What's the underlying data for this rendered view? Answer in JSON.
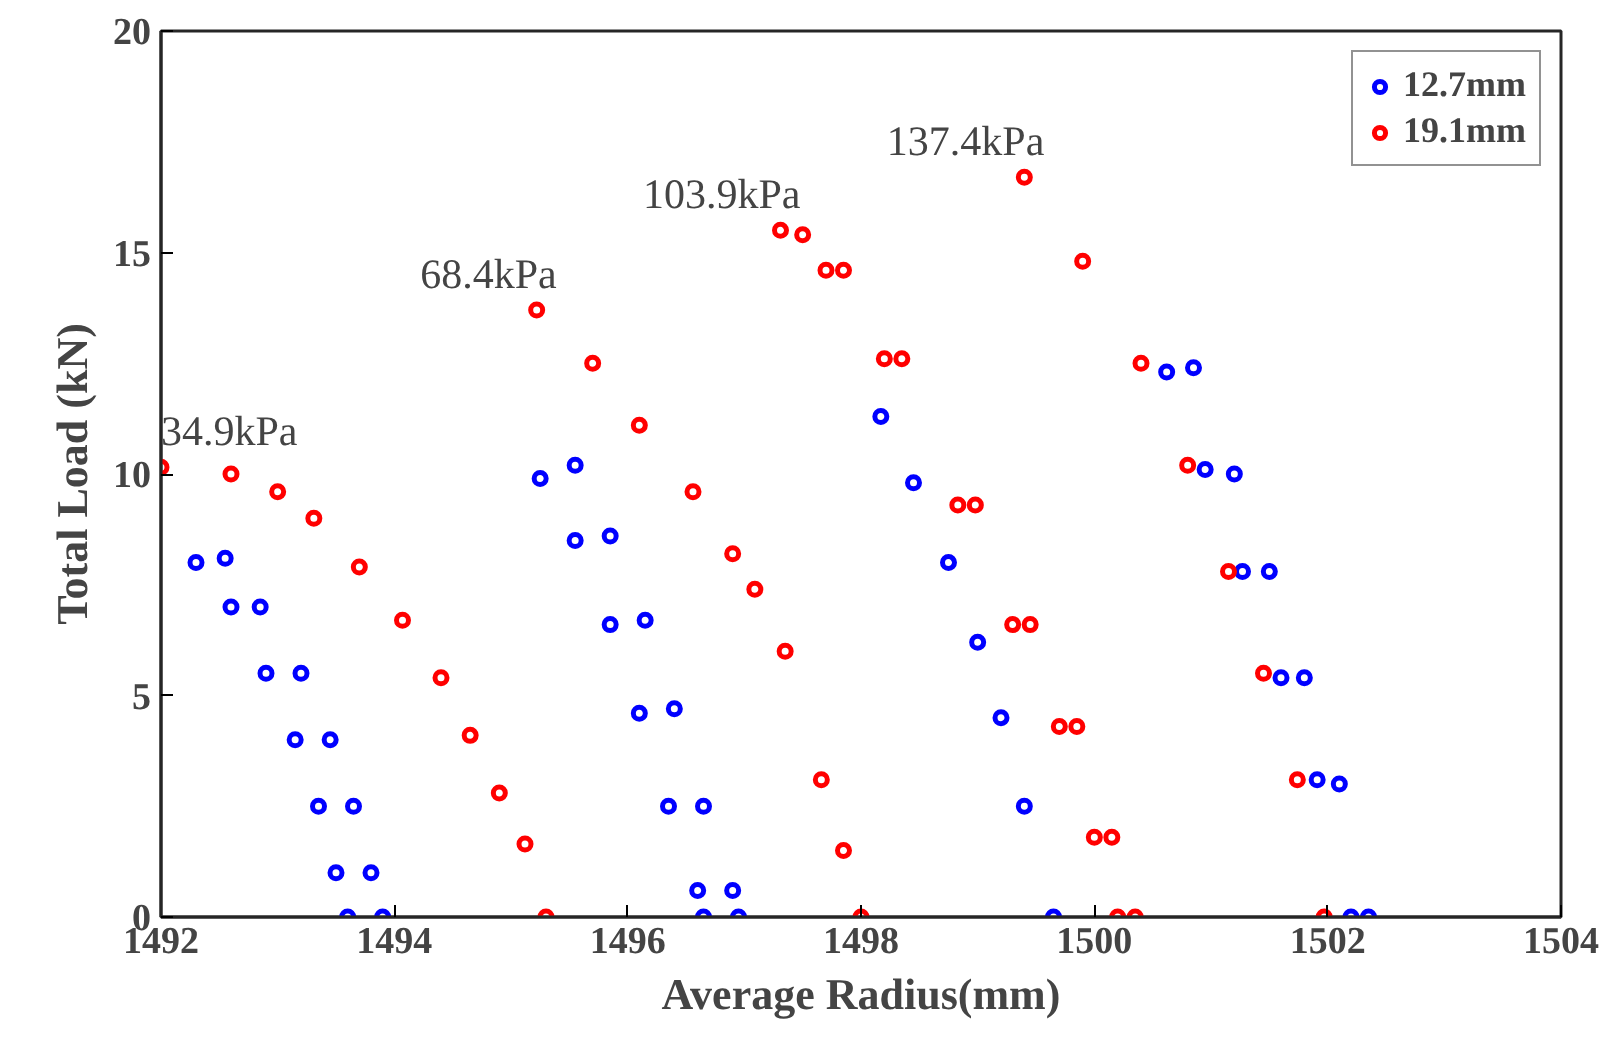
{
  "chart_data": {
    "type": "scatter",
    "xlabel": "Average Radius(mm)",
    "ylabel": "Total Load (kN)",
    "xlim": [
      1492,
      1504
    ],
    "xticks": [
      1492,
      1494,
      1496,
      1498,
      1500,
      1502,
      1504
    ],
    "ylim": [
      0,
      20
    ],
    "yticks": [
      0,
      5,
      10,
      15,
      20
    ],
    "grid": false,
    "legend": "top right",
    "marker": "circle",
    "series": [
      {
        "name": "12.7mm",
        "color": "#0000ff",
        "x": [
          1492.3,
          1492.6,
          1492.9,
          1493.15,
          1493.35,
          1493.5,
          1493.6,
          1492.55,
          1492.85,
          1493.2,
          1493.45,
          1493.65,
          1493.8,
          1493.9,
          1495.25,
          1495.55,
          1495.85,
          1496.1,
          1496.35,
          1496.6,
          1496.65,
          1495.55,
          1495.85,
          1496.15,
          1496.4,
          1496.65,
          1496.9,
          1496.95,
          1498.17,
          1498.45,
          1498.75,
          1499.0,
          1499.2,
          1499.4,
          1499.65,
          1500.62,
          1500.95,
          1501.27,
          1501.6,
          1501.91,
          1502.2,
          1500.85,
          1501.2,
          1501.5,
          1501.8,
          1502.1,
          1502.35
        ],
        "values": [
          8.0,
          7.0,
          5.5,
          4.0,
          2.5,
          1.0,
          0,
          8.1,
          7.0,
          5.5,
          4.0,
          2.5,
          1.0,
          0,
          9.9,
          8.5,
          6.6,
          4.6,
          2.5,
          0.6,
          0,
          10.2,
          8.6,
          6.7,
          4.7,
          2.5,
          0.6,
          0,
          11.3,
          9.8,
          8.0,
          6.2,
          4.5,
          2.5,
          0,
          12.3,
          10.1,
          7.8,
          5.4,
          3.1,
          0,
          12.4,
          10.0,
          7.8,
          5.4,
          3.0,
          0
        ]
      },
      {
        "name": "19.1mm",
        "color": "#ff0000",
        "x": [
          1492.0,
          1492.6,
          1493.0,
          1493.31,
          1493.7,
          1494.07,
          1494.4,
          1494.65,
          1494.9,
          1495.12,
          1495.3,
          1495.22,
          1495.7,
          1496.1,
          1496.56,
          1496.9,
          1497.09,
          1497.35,
          1497.66,
          1497.85,
          1498.0,
          1497.31,
          1497.7,
          1498.2,
          1498.83,
          1499.3,
          1499.7,
          1500.0,
          1500.2,
          1497.5,
          1497.85,
          1498.35,
          1498.98,
          1499.45,
          1499.85,
          1500.15,
          1500.35,
          1499.4,
          1499.9,
          1500.4,
          1500.8,
          1501.15,
          1501.45,
          1501.74,
          1501.97
        ],
        "values": [
          10.15,
          10.0,
          9.6,
          9.0,
          7.9,
          6.7,
          5.4,
          4.1,
          2.8,
          1.65,
          0,
          13.7,
          12.5,
          11.1,
          9.6,
          8.2,
          7.4,
          6.0,
          3.1,
          1.5,
          0,
          15.5,
          14.6,
          12.6,
          9.3,
          6.6,
          4.3,
          1.8,
          0,
          15.4,
          14.6,
          12.6,
          9.3,
          6.6,
          4.3,
          1.8,
          0,
          16.7,
          14.8,
          12.5,
          10.2,
          7.8,
          5.5,
          3.1,
          0
        ]
      }
    ],
    "annotations": [
      {
        "text": "34.9kPa",
        "x": 1492.0,
        "y": 10.15
      },
      {
        "text": "68.4kPa",
        "x": 1495.22,
        "y": 13.7
      },
      {
        "text": "103.9kPa",
        "x": 1497.31,
        "y": 15.5
      },
      {
        "text": "137.4kPa",
        "x": 1499.4,
        "y": 16.7
      }
    ]
  }
}
